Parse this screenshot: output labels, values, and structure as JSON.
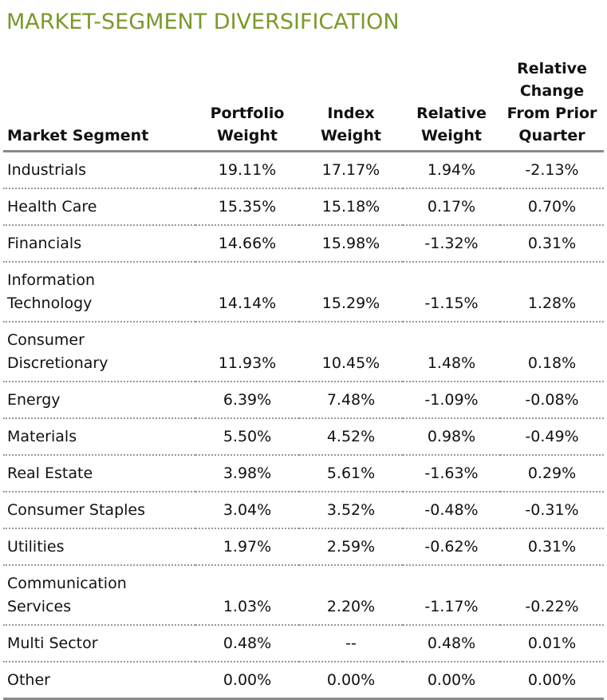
{
  "header": {
    "title": "MARKET-SEGMENT DIVERSIFICATION"
  },
  "table": {
    "columns": [
      "Market Segment",
      "Portfolio\nWeight",
      "Index\nWeight",
      "Relative\nWeight",
      "Relative\nChange\nFrom Prior\nQuarter"
    ],
    "rows": [
      [
        "Industrials",
        "19.11%",
        "17.17%",
        "1.94%",
        "-2.13%"
      ],
      [
        "Health Care",
        "15.35%",
        "15.18%",
        "0.17%",
        "0.70%"
      ],
      [
        "Financials",
        "14.66%",
        "15.98%",
        "-1.32%",
        "0.31%"
      ],
      [
        "Information\nTechnology",
        "14.14%",
        "15.29%",
        "-1.15%",
        "1.28%"
      ],
      [
        "Consumer\nDiscretionary",
        "11.93%",
        "10.45%",
        "1.48%",
        "0.18%"
      ],
      [
        "Energy",
        "6.39%",
        "7.48%",
        "-1.09%",
        "-0.08%"
      ],
      [
        "Materials",
        "5.50%",
        "4.52%",
        "0.98%",
        "-0.49%"
      ],
      [
        "Real Estate",
        "3.98%",
        "5.61%",
        "-1.63%",
        "0.29%"
      ],
      [
        "Consumer Staples",
        "3.04%",
        "3.52%",
        "-0.48%",
        "-0.31%"
      ],
      [
        "Utilities",
        "1.97%",
        "2.59%",
        "-0.62%",
        "0.31%"
      ],
      [
        "Communication\nServices",
        "1.03%",
        "2.20%",
        "-1.17%",
        "-0.22%"
      ],
      [
        "Multi Sector",
        "0.48%",
        "--",
        "0.48%",
        "0.01%"
      ],
      [
        "Other",
        "0.00%",
        "0.00%",
        "0.00%",
        "0.00%"
      ]
    ]
  }
}
